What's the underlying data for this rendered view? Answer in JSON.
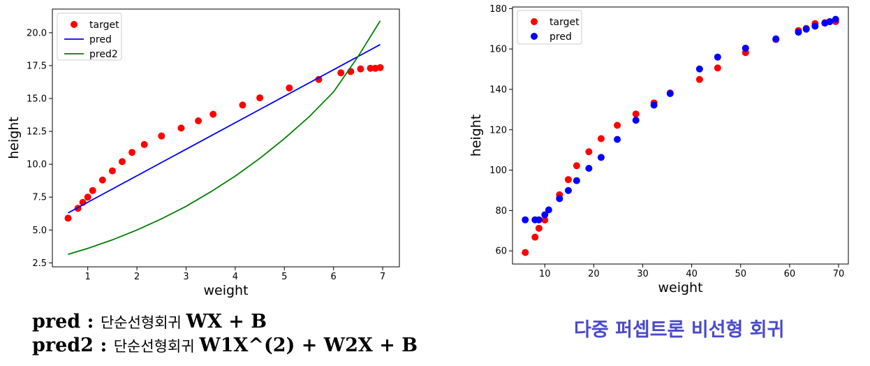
{
  "chart_data": [
    {
      "type": "scatter+line",
      "xlabel": "weight",
      "ylabel": "height",
      "xlim": [
        0.28,
        7.34
      ],
      "ylim": [
        2.2,
        21.8
      ],
      "xticks": [
        1,
        2,
        3,
        4,
        5,
        6,
        7
      ],
      "yticks": [
        2.5,
        5.0,
        7.5,
        10.0,
        12.5,
        15.0,
        17.5,
        20.0
      ],
      "ytick_labels": [
        "2.5",
        "5.0",
        "7.5",
        "10.0",
        "12.5",
        "15.0",
        "17.5",
        "20.0"
      ],
      "grid": false,
      "legend_position": "top-left",
      "series": [
        {
          "name": "target",
          "kind": "scatter",
          "color": "#ff0000",
          "x": [
            0.6,
            0.8,
            0.9,
            1.0,
            1.1,
            1.3,
            1.5,
            1.7,
            1.9,
            2.15,
            2.5,
            2.9,
            3.25,
            3.55,
            4.15,
            4.5,
            5.1,
            5.7,
            6.15,
            6.35,
            6.55,
            6.75,
            6.85,
            6.95
          ],
          "y": [
            5.9,
            6.65,
            7.1,
            7.5,
            8.0,
            8.8,
            9.5,
            10.2,
            10.9,
            11.5,
            12.15,
            12.75,
            13.3,
            13.8,
            14.5,
            15.05,
            15.8,
            16.45,
            16.95,
            17.05,
            17.25,
            17.3,
            17.3,
            17.35
          ]
        },
        {
          "name": "pred",
          "kind": "line",
          "color": "#0000ff",
          "x": [
            0.6,
            6.95
          ],
          "y": [
            6.3,
            19.1
          ]
        },
        {
          "name": "pred2",
          "kind": "line",
          "color": "#008000",
          "x": [
            0.6,
            1.0,
            1.5,
            2.0,
            2.5,
            3.0,
            3.5,
            4.0,
            4.5,
            5.0,
            5.5,
            6.0,
            6.5,
            6.95
          ],
          "y": [
            3.15,
            3.6,
            4.25,
            5.0,
            5.85,
            6.8,
            7.9,
            9.1,
            10.45,
            11.95,
            13.6,
            15.5,
            18.2,
            20.9
          ]
        }
      ]
    },
    {
      "type": "scatter",
      "xlabel": "weight",
      "ylabel": "height",
      "xlim": [
        3.4,
        72.0
      ],
      "ylim": [
        53.5,
        180.8
      ],
      "xticks": [
        10,
        20,
        30,
        40,
        50,
        60,
        70
      ],
      "yticks": [
        60,
        80,
        100,
        120,
        140,
        160,
        180
      ],
      "grid": false,
      "legend_position": "top-left",
      "series": [
        {
          "name": "target",
          "kind": "scatter",
          "color": "#ff0000",
          "x": [
            6,
            8,
            8.8,
            10,
            13,
            14.8,
            16.5,
            19,
            21.5,
            24.8,
            28.6,
            32.3,
            35.6,
            41.6,
            45.3,
            51,
            57.2,
            61.8,
            63.4,
            65.2,
            67.2,
            68.2,
            69.4
          ],
          "y": [
            59.2,
            66.8,
            71.2,
            75.3,
            87.8,
            95.3,
            102.2,
            109.1,
            115.6,
            122.2,
            127.8,
            133.3,
            138.2,
            144.9,
            150.6,
            158.2,
            164.7,
            169.1,
            170.2,
            172.6,
            173.0,
            173.6,
            173.6
          ]
        },
        {
          "name": "pred",
          "kind": "scatter",
          "color": "#0000ff",
          "x": [
            6,
            8,
            8.8,
            10,
            10.8,
            13,
            14.8,
            16.5,
            19,
            21.5,
            24.8,
            28.6,
            32.3,
            35.6,
            41.6,
            45.3,
            51,
            57.2,
            61.8,
            63.4,
            65.2,
            67.2,
            68.2,
            69.4
          ],
          "y": [
            75.4,
            75.4,
            75.4,
            77.9,
            80.3,
            85.9,
            89.9,
            94.8,
            100.9,
            106.3,
            115.2,
            124.7,
            132.2,
            137.9,
            150.1,
            156.0,
            160.4,
            165.0,
            168.3,
            169.8,
            171.3,
            172.8,
            173.5,
            174.7
          ]
        }
      ]
    }
  ],
  "captions": {
    "line1_bold_a": "pred : ",
    "line1_ko": "단순선형회귀 ",
    "line1_bold_b": "WX + B",
    "line2_bold_a": "pred2 : ",
    "line2_ko": "단순선형회귀 ",
    "line2_bold_b": "W1X^(2) + W2X + B",
    "right_title": "다중 퍼셉트론 비선형 회귀"
  }
}
